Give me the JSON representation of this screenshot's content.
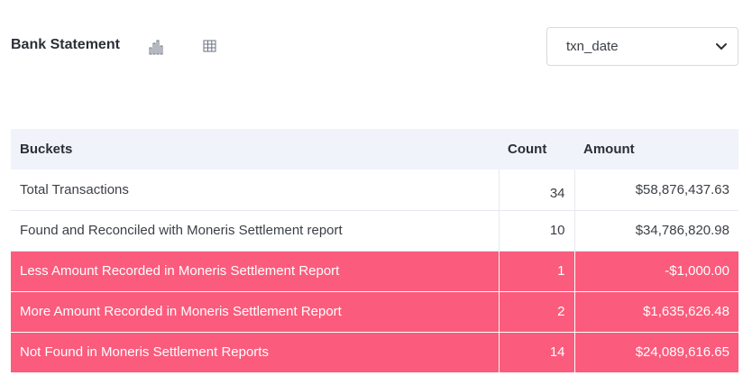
{
  "header": {
    "title": "Bank Statement",
    "chart_icon": "bar-chart-icon",
    "table_icon": "table-grid-icon"
  },
  "date_select": {
    "value": "txn_date",
    "icon": "chevron-down-icon"
  },
  "table": {
    "columns": [
      "Buckets",
      "Count",
      "Amount"
    ],
    "rows": [
      {
        "bucket": "Total Transactions",
        "count": "34",
        "amount": "$58,876,437.63",
        "status": "normal"
      },
      {
        "bucket": "Found and Reconciled with Moneris Settlement report",
        "count": "10",
        "amount": "$34,786,820.98",
        "status": "normal"
      },
      {
        "bucket": "Less Amount Recorded in Moneris Settlement Report",
        "count": "1",
        "amount": "-$1,000.00",
        "status": "alert"
      },
      {
        "bucket": "More Amount Recorded in Moneris Settlement Report",
        "count": "2",
        "amount": "$1,635,626.48",
        "status": "alert"
      },
      {
        "bucket": "Not Found in Moneris Settlement Reports",
        "count": "14",
        "amount": "$24,089,616.65",
        "status": "alert"
      }
    ]
  },
  "colors": {
    "alert_row": "#fb5b7c",
    "header_row": "#f0f3fa",
    "icon": "#6b7280"
  }
}
